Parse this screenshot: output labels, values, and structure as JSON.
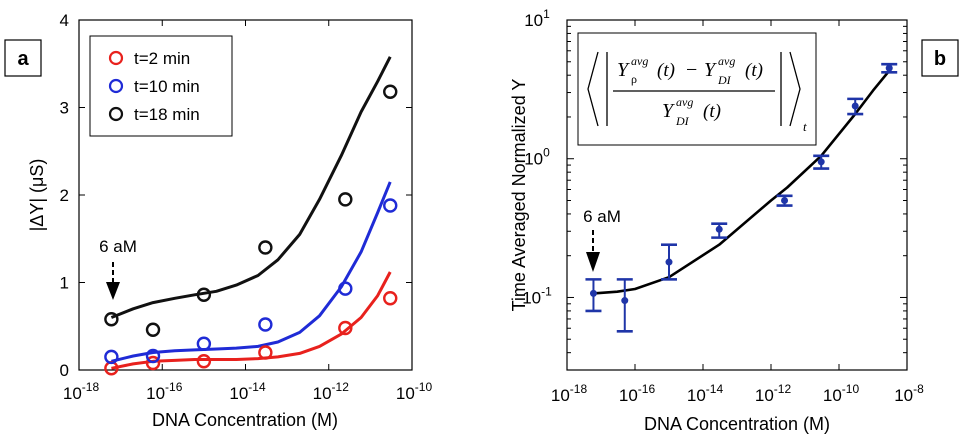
{
  "chart_data": [
    {
      "type": "scatter",
      "panel_label": "a",
      "xlabel": "DNA Concentration (M)",
      "ylabel": "|ΔY| (μS)",
      "xscale": "log",
      "xlim": [
        1e-18,
        1e-10
      ],
      "ylim": [
        0,
        4
      ],
      "xticks": [
        {
          "value": 1e-18,
          "base": "10",
          "exp": "-18"
        },
        {
          "value": 1e-16,
          "base": "10",
          "exp": "-16"
        },
        {
          "value": 1e-14,
          "base": "10",
          "exp": "-14"
        },
        {
          "value": 1e-12,
          "base": "10",
          "exp": "-12"
        },
        {
          "value": 1e-10,
          "base": "10",
          "exp": "-10"
        }
      ],
      "yticks": [
        {
          "value": 0,
          "label": "0"
        },
        {
          "value": 1,
          "label": "1"
        },
        {
          "value": 2,
          "label": "2"
        },
        {
          "value": 3,
          "label": "3"
        },
        {
          "value": 4,
          "label": "4"
        }
      ],
      "legend_position": "top-left",
      "annotation": {
        "text": "6 aM",
        "x": 6e-18
      },
      "series": [
        {
          "name": "t=2 min",
          "color": "#e8211d",
          "x": [
            6e-18,
            6e-17,
            1e-15,
            3e-14,
            2.5e-12,
            3e-11
          ],
          "y": [
            0.02,
            0.08,
            0.1,
            0.2,
            0.48,
            0.82
          ],
          "fit_x": [
            6e-18,
            2e-17,
            6e-17,
            2e-16,
            6e-16,
            2e-15,
            6e-15,
            2e-14,
            6e-14,
            2e-13,
            6e-13,
            2e-12,
            6e-12,
            1.5e-11,
            3e-11
          ],
          "fit_y": [
            0.02,
            0.07,
            0.1,
            0.11,
            0.12,
            0.12,
            0.12,
            0.13,
            0.15,
            0.19,
            0.27,
            0.41,
            0.6,
            0.85,
            1.12
          ]
        },
        {
          "name": "t=10 min",
          "color": "#1f2bd6",
          "x": [
            6e-18,
            6e-17,
            1e-15,
            3e-14,
            2.5e-12,
            3e-11
          ],
          "y": [
            0.15,
            0.16,
            0.3,
            0.52,
            0.93,
            1.88
          ],
          "fit_x": [
            6e-18,
            2e-17,
            6e-17,
            2e-16,
            6e-16,
            2e-15,
            6e-15,
            2e-14,
            6e-14,
            2e-13,
            6e-13,
            2e-12,
            6e-12,
            1.5e-11,
            3e-11
          ],
          "fit_y": [
            0.1,
            0.16,
            0.2,
            0.22,
            0.23,
            0.24,
            0.25,
            0.27,
            0.32,
            0.43,
            0.62,
            0.95,
            1.35,
            1.8,
            2.15
          ]
        },
        {
          "name": "t=18 min",
          "color": "#111111",
          "x": [
            6e-18,
            6e-17,
            1e-15,
            3e-14,
            2.5e-12,
            3e-11
          ],
          "y": [
            0.58,
            0.46,
            0.86,
            1.4,
            1.95,
            3.18
          ],
          "fit_x": [
            6e-18,
            2e-17,
            6e-17,
            2e-16,
            6e-16,
            2e-15,
            6e-15,
            2e-14,
            6e-14,
            2e-13,
            6e-13,
            2e-12,
            6e-12,
            1.5e-11,
            3e-11
          ],
          "fit_y": [
            0.6,
            0.7,
            0.77,
            0.82,
            0.86,
            0.9,
            0.97,
            1.08,
            1.26,
            1.55,
            1.95,
            2.45,
            2.95,
            3.3,
            3.58
          ]
        }
      ]
    },
    {
      "type": "scatter",
      "panel_label": "b",
      "xlabel": "DNA Concentration (M)",
      "ylabel": "Time Averaged Normalized Y",
      "xscale": "log",
      "yscale": "log",
      "xlim": [
        1e-18,
        1e-08
      ],
      "ylim": [
        0.03,
        10
      ],
      "xticks": [
        {
          "value": 1e-18,
          "base": "10",
          "exp": "-18"
        },
        {
          "value": 1e-16,
          "base": "10",
          "exp": "-16"
        },
        {
          "value": 1e-14,
          "base": "10",
          "exp": "-14"
        },
        {
          "value": 1e-12,
          "base": "10",
          "exp": "-12"
        },
        {
          "value": 1e-10,
          "base": "10",
          "exp": "-10"
        },
        {
          "value": 1e-08,
          "base": "10",
          "exp": "-8"
        }
      ],
      "yticks": [
        {
          "value": 0.1,
          "base": "10",
          "exp": "-1"
        },
        {
          "value": 1,
          "base": "10",
          "exp": "0"
        },
        {
          "value": 10,
          "base": "10",
          "exp": "1"
        }
      ],
      "annotation": {
        "text": "6 aM",
        "x": 6e-18
      },
      "formula": {
        "symbol": "Y",
        "sup": "avg",
        "sub_rho": "ρ",
        "sub_di": "DI",
        "arg": "(t)",
        "minus": "−",
        "outer_sub": "t"
      },
      "series": [
        {
          "color": "#1f35a8",
          "x": [
            6e-18,
            5e-17,
            1e-15,
            3e-14,
            2.5e-12,
            3e-11,
            3e-10,
            3e-09
          ],
          "y": [
            0.107,
            0.095,
            0.18,
            0.31,
            0.5,
            0.95,
            2.4,
            4.5
          ],
          "err_low": [
            0.08,
            0.057,
            0.135,
            0.27,
            0.46,
            0.85,
            2.1,
            4.2
          ],
          "err_high": [
            0.135,
            0.135,
            0.24,
            0.34,
            0.54,
            1.05,
            2.7,
            4.8
          ],
          "fit_x": [
            6e-18,
            3e-17,
            1e-16,
            1e-15,
            3e-14,
            1e-12,
            3e-12,
            3e-11,
            3e-10,
            1e-09,
            3e-09
          ],
          "fit_y": [
            0.107,
            0.11,
            0.115,
            0.14,
            0.24,
            0.5,
            0.62,
            1.05,
            2.1,
            3.1,
            4.3
          ]
        }
      ]
    }
  ]
}
